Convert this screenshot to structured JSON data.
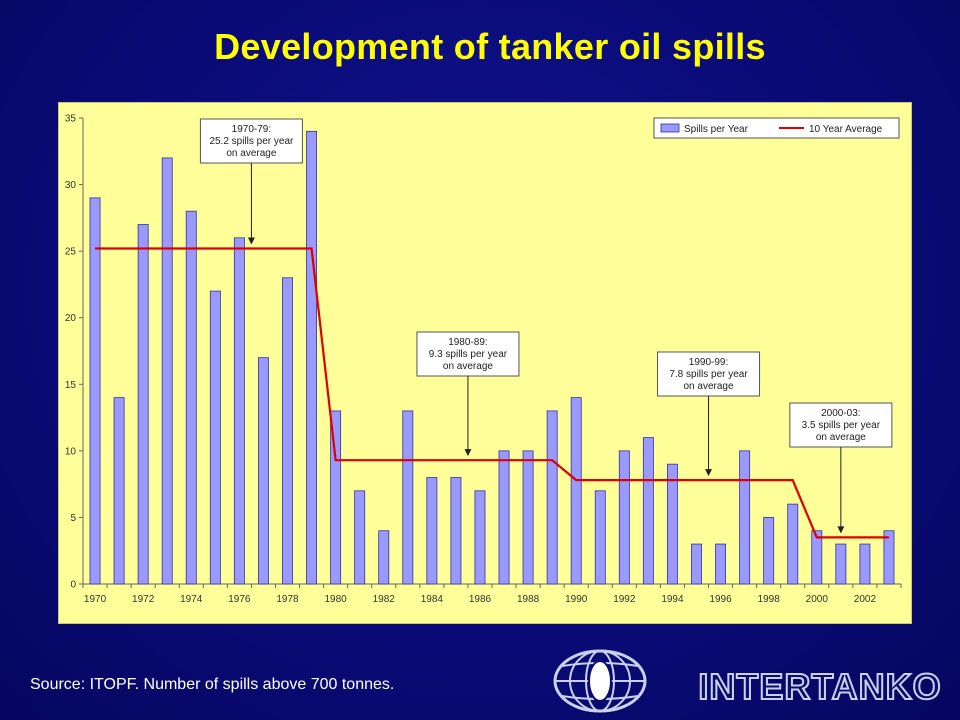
{
  "slide": {
    "title": "Development of tanker oil spills",
    "source": "Source: ITOPF. Number of spills above 700 tonnes.",
    "logo_text": "INTERTANKO"
  },
  "colors": {
    "background": "#0a0b78",
    "title": "#ffff00",
    "plot_area": "#ffff99",
    "bars": "#9999ff",
    "bar_border": "#333399",
    "average_line": "#dd0000"
  },
  "chart_data": {
    "type": "bar",
    "categories": [
      "1970",
      "1971",
      "1972",
      "1973",
      "1974",
      "1975",
      "1976",
      "1977",
      "1978",
      "1979",
      "1980",
      "1981",
      "1982",
      "1983",
      "1984",
      "1985",
      "1986",
      "1987",
      "1988",
      "1989",
      "1990",
      "1991",
      "1992",
      "1993",
      "1994",
      "1995",
      "1996",
      "1997",
      "1998",
      "1999",
      "2000",
      "2001",
      "2002",
      "2003"
    ],
    "x_tick_labels": [
      "1970",
      "1972",
      "1974",
      "1976",
      "1978",
      "1980",
      "1982",
      "1984",
      "1986",
      "1988",
      "1990",
      "1992",
      "1994",
      "1996",
      "1998",
      "2000",
      "2002"
    ],
    "series": [
      {
        "name": "Spills per Year",
        "type": "bar",
        "values": [
          29,
          14,
          27,
          32,
          28,
          22,
          26,
          17,
          23,
          34,
          13,
          7,
          4,
          13,
          8,
          8,
          7,
          10,
          10,
          13,
          14,
          7,
          10,
          11,
          9,
          3,
          3,
          10,
          5,
          6,
          4,
          3,
          3,
          4
        ]
      },
      {
        "name": "10 Year Average",
        "type": "line",
        "points": [
          [
            1970,
            25.2
          ],
          [
            1979,
            25.2
          ],
          [
            1980,
            9.3
          ],
          [
            1989,
            9.3
          ],
          [
            1990,
            7.8
          ],
          [
            1999,
            7.8
          ],
          [
            2000,
            3.5
          ],
          [
            2003,
            3.5
          ]
        ]
      }
    ],
    "ylim": [
      0,
      35
    ],
    "y_ticks": [
      0,
      5,
      10,
      15,
      20,
      25,
      30,
      35
    ],
    "legend_position": "top-right",
    "annotations": [
      {
        "lines": [
          "1970-79:",
          "25.2 spills per year",
          "on average"
        ],
        "x": 1976.5,
        "y": 25.2
      },
      {
        "lines": [
          "1980-89:",
          "9.3 spills per year",
          "on average"
        ],
        "x": 1985.5,
        "y": 9.3
      },
      {
        "lines": [
          "1990-99:",
          "7.8 spills per year",
          "on average"
        ],
        "x": 1995.5,
        "y": 7.8
      },
      {
        "lines": [
          "2000-03:",
          "3.5 spills per year",
          "on average"
        ],
        "x": 2001,
        "y": 3.5
      }
    ]
  }
}
